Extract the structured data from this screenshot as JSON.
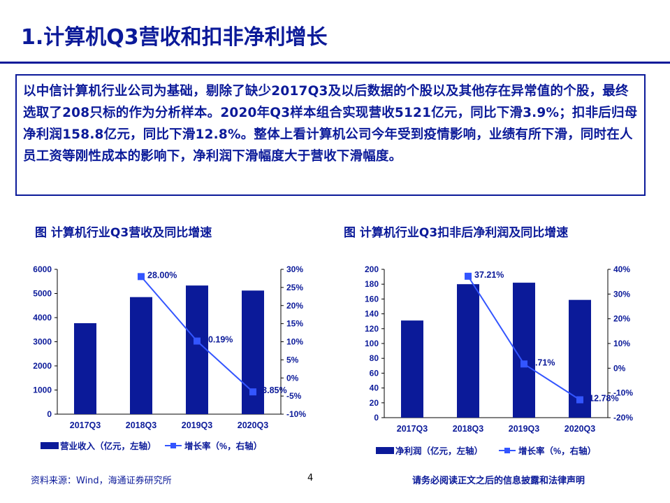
{
  "title": "1.计算机Q3营收和扣非净利增长",
  "summary": "以中信计算机行业公司为基础，剔除了缺少2017Q3及以后数据的个股以及其他存在异常值的个股，最终选取了208只标的作为分析样本。2020年Q3样本组合实现营收5121亿元，同比下滑3.9%；扣非后归母净利润158.8亿元，同比下滑12.8%。整体上看计算机公司今年受到疫情影响，业绩有所下滑，同时在人员工资等刚性成本的影响下，净利润下滑幅度大于营收下滑幅度。",
  "figures": [
    {
      "title": "图 计算机行业Q3营收及同比增速"
    },
    {
      "title": "图 计算机行业Q3扣非后净利润及同比增速"
    }
  ],
  "chart_data": [
    {
      "type": "bar",
      "categories": [
        "2017Q3",
        "2018Q3",
        "2019Q3",
        "2020Q3"
      ],
      "series": [
        {
          "name": "营业收入（亿元，左轴）",
          "type": "bar",
          "axis": "left",
          "values": [
            3770,
            4850,
            5330,
            5121
          ]
        },
        {
          "name": "增长率（%，右轴）",
          "type": "line",
          "axis": "right",
          "values": [
            null,
            28.0,
            10.19,
            -3.85
          ]
        }
      ],
      "data_labels": [
        "",
        "28.00%",
        "10.19%",
        "-3.85%"
      ],
      "y_left": {
        "min": 0,
        "max": 6000,
        "step": 1000,
        "ticks": [
          "0",
          "1000",
          "2000",
          "3000",
          "4000",
          "5000",
          "6000"
        ]
      },
      "y_right": {
        "min": -10,
        "max": 30,
        "step": 5,
        "ticks": [
          "-10%",
          "-5%",
          "0%",
          "5%",
          "10%",
          "15%",
          "20%",
          "25%",
          "30%"
        ]
      },
      "bar_color": "#0b1a99",
      "line_color": "#3355ff",
      "legend_position": "bottom"
    },
    {
      "type": "bar",
      "categories": [
        "2017Q3",
        "2018Q3",
        "2019Q3",
        "2020Q3"
      ],
      "series": [
        {
          "name": "净利润（亿元，左轴）",
          "type": "bar",
          "axis": "left",
          "values": [
            131,
            180,
            182,
            158.8
          ]
        },
        {
          "name": "增长率（%，右轴）",
          "type": "line",
          "axis": "right",
          "values": [
            null,
            37.21,
            1.71,
            -12.78
          ]
        }
      ],
      "data_labels": [
        "",
        "37.21%",
        "1.71%",
        "-12.78%"
      ],
      "y_left": {
        "min": 0,
        "max": 200,
        "step": 20,
        "ticks": [
          "0",
          "20",
          "40",
          "60",
          "80",
          "100",
          "120",
          "140",
          "160",
          "180",
          "200"
        ]
      },
      "y_right": {
        "min": -20,
        "max": 40,
        "step": 10,
        "ticks": [
          "-20%",
          "-10%",
          "0%",
          "10%",
          "20%",
          "30%",
          "40%"
        ]
      },
      "bar_color": "#0b1a99",
      "line_color": "#3355ff",
      "legend_position": "bottom"
    }
  ],
  "footer": {
    "source": "资料来源：Wind，海通证券研究所",
    "page": "4",
    "disclaimer": "请务必阅读正文之后的信息披露和法律声明"
  }
}
